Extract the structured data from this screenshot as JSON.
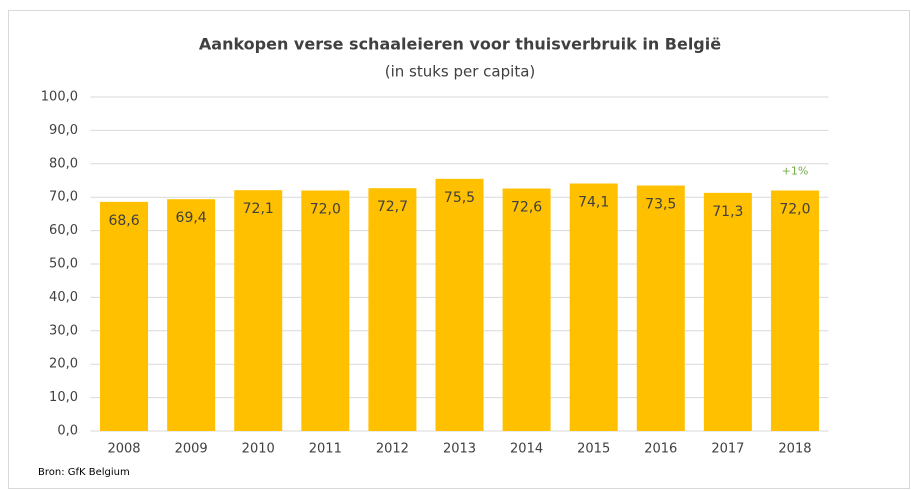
{
  "chart_data": {
    "type": "bar",
    "title": "Aankopen verse schaaleieren voor thuisverbruik in België",
    "subtitle": "(in stuks per capita)",
    "categories": [
      "2008",
      "2009",
      "2010",
      "2011",
      "2012",
      "2013",
      "2014",
      "2015",
      "2016",
      "2017",
      "2018"
    ],
    "values": [
      68.6,
      69.4,
      72.1,
      72.0,
      72.7,
      75.5,
      72.6,
      74.1,
      73.5,
      71.3,
      72.0
    ],
    "value_labels": [
      "68,6",
      "69,4",
      "72,1",
      "72,0",
      "72,7",
      "75,5",
      "72,6",
      "74,1",
      "73,5",
      "71,3",
      "72,0"
    ],
    "color": "#ffc000",
    "ylim": [
      0,
      100
    ],
    "yticks": [
      {
        "value": 0,
        "label": "0,0"
      },
      {
        "value": 10,
        "label": "10,0"
      },
      {
        "value": 20,
        "label": "20,0"
      },
      {
        "value": 30,
        "label": "30,0"
      },
      {
        "value": 40,
        "label": "40,0"
      },
      {
        "value": 50,
        "label": "50,0"
      },
      {
        "value": 60,
        "label": "60,0"
      },
      {
        "value": 70,
        "label": "70,0"
      },
      {
        "value": 80,
        "label": "80,0"
      },
      {
        "value": 90,
        "label": "90,0"
      },
      {
        "value": 100,
        "label": "100,0"
      }
    ],
    "grid": true,
    "annotation": "+1%",
    "source": "Bron: GfK Belgium"
  }
}
